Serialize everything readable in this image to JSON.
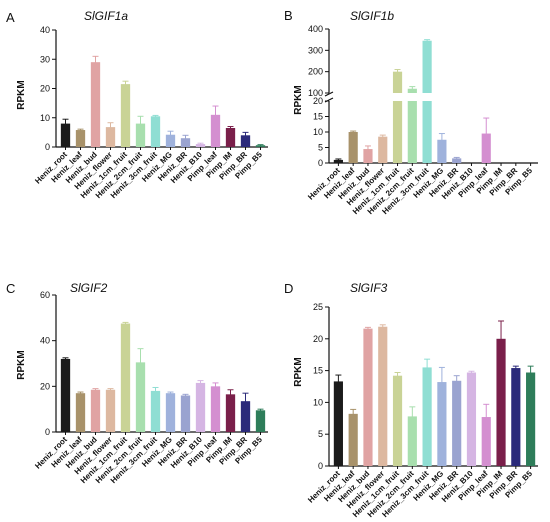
{
  "chart_data": [
    {
      "type": "bar",
      "panel_label": "A",
      "title": "SlGIF1a",
      "ylabel": "RPKM",
      "ylim": [
        0,
        40
      ],
      "yticks": [
        0,
        10,
        20,
        30,
        40
      ],
      "categories": [
        "Heniz_root",
        "Heniz_leaf",
        "Heniz_bud",
        "Heniz_flower",
        "Heniz_1cm_fruit",
        "Heniz_2cm_fruit",
        "Heniz_3cm_fruit",
        "Heniz_MG",
        "Heniz_BR",
        "Heniz_B10",
        "Pimp_leaf",
        "Pimp_IM",
        "Pimp_BR",
        "Pimp_B5"
      ],
      "values": [
        8,
        5.8,
        29,
        6.8,
        21.5,
        8,
        10.5,
        4.2,
        3,
        1,
        11,
        6.5,
        4,
        0.6
      ],
      "errors": [
        1.5,
        0.3,
        2,
        1.5,
        1,
        2.5,
        0.3,
        1.2,
        1,
        0.3,
        3,
        0.5,
        1,
        0.2
      ],
      "colors": [
        "#1b1b1b",
        "#a8926a",
        "#e0a3a3",
        "#ddb8a0",
        "#c9d396",
        "#a8dfae",
        "#8fded3",
        "#9fb2dc",
        "#9aa3d0",
        "#d5b5e3",
        "#d48fd0",
        "#7a1f4a",
        "#2b2a7a",
        "#2e7d5a"
      ]
    },
    {
      "type": "bar",
      "panel_label": "B",
      "title": "SlGIF1b",
      "ylabel": "RPKM",
      "broken_axis": true,
      "ylim_lower": [
        0,
        20
      ],
      "ylim_upper": [
        100,
        400
      ],
      "yticks": [
        0,
        5,
        10,
        15,
        20,
        100,
        200,
        300,
        400
      ],
      "categories": [
        "Heniz_root",
        "Heniz_leaf",
        "Heniz_bud",
        "Heniz_flower",
        "Heniz_1cm_fruit",
        "Heniz_2cm_fruit",
        "Heniz_3cm_fruit",
        "Heniz_MG",
        "Heniz_BR",
        "Heniz_B10",
        "Pimp_leaf",
        "Pimp_IM",
        "Pimp_BR",
        "Pimp_B5"
      ],
      "values": [
        1,
        10,
        4.5,
        8.5,
        200,
        120,
        345,
        7.5,
        1.5,
        0,
        9.5,
        0,
        0,
        0
      ],
      "errors": [
        0.3,
        0.3,
        1,
        0.5,
        10,
        10,
        5,
        2,
        0.3,
        0,
        5,
        0,
        0,
        0
      ],
      "colors": [
        "#1b1b1b",
        "#a8926a",
        "#e0a3a3",
        "#ddb8a0",
        "#c9d396",
        "#a8dfae",
        "#8fded3",
        "#9fb2dc",
        "#9aa3d0",
        "#d5b5e3",
        "#d48fd0",
        "#7a1f4a",
        "#2b2a7a",
        "#2e7d5a"
      ]
    },
    {
      "type": "bar",
      "panel_label": "C",
      "title": "SlGIF2",
      "ylabel": "RPKM",
      "ylim": [
        0,
        60
      ],
      "yticks": [
        0,
        20,
        40,
        60
      ],
      "categories": [
        "Heniz_root",
        "Heniz_leaf",
        "Heniz_bud",
        "Heniz_flower",
        "Heniz_1cm_fruit",
        "Heniz_2cm_fruit",
        "Heniz_3cm_fruit",
        "Heniz_MG",
        "Heniz_BR",
        "Heniz_B10",
        "Pimp_leaf",
        "Pimp_IM",
        "Pimp_BR",
        "Pimp_B5"
      ],
      "values": [
        32,
        17,
        18.5,
        18.5,
        47.5,
        30.5,
        18,
        17,
        16,
        21.5,
        20,
        16.5,
        13.5,
        9.5
      ],
      "errors": [
        0.5,
        0.5,
        0.5,
        0.5,
        0.5,
        6,
        1.5,
        0.5,
        0.5,
        1,
        1.5,
        2,
        3.5,
        0.5
      ],
      "colors": [
        "#1b1b1b",
        "#a8926a",
        "#e0a3a3",
        "#ddb8a0",
        "#c9d396",
        "#a8dfae",
        "#8fded3",
        "#9fb2dc",
        "#9aa3d0",
        "#d5b5e3",
        "#d48fd0",
        "#7a1f4a",
        "#2b2a7a",
        "#2e7d5a"
      ]
    },
    {
      "type": "bar",
      "panel_label": "D",
      "title": "SlGIF3",
      "ylabel": "RPKM",
      "ylim": [
        0,
        25
      ],
      "yticks": [
        0,
        5,
        10,
        15,
        20,
        25
      ],
      "categories": [
        "Heniz_root",
        "Heniz_leaf",
        "Heniz_bud",
        "Heniz_flower",
        "Heniz_1cm_fruit",
        "Heniz_2cm_fruit",
        "Heniz_3cm_fruit",
        "Heniz_MG",
        "Heniz_BR",
        "Heniz_B10",
        "Pimp_leaf",
        "Pimp_IM",
        "Pimp_BR",
        "Pimp_B5"
      ],
      "values": [
        13.3,
        8.2,
        21.6,
        21.9,
        14.2,
        7.8,
        15.5,
        13.2,
        13.4,
        14.7,
        7.7,
        20,
        15.4,
        14.7
      ],
      "errors": [
        1,
        0.7,
        0.2,
        0.3,
        0.5,
        1.5,
        1.3,
        2.3,
        0.8,
        0.2,
        2,
        2.8,
        0.3,
        1
      ],
      "colors": [
        "#1b1b1b",
        "#a8926a",
        "#e0a3a3",
        "#ddb8a0",
        "#c9d396",
        "#a8dfae",
        "#8fded3",
        "#9fb2dc",
        "#9aa3d0",
        "#d5b5e3",
        "#d48fd0",
        "#7a1f4a",
        "#2b2a7a",
        "#2e7d5a"
      ]
    }
  ]
}
